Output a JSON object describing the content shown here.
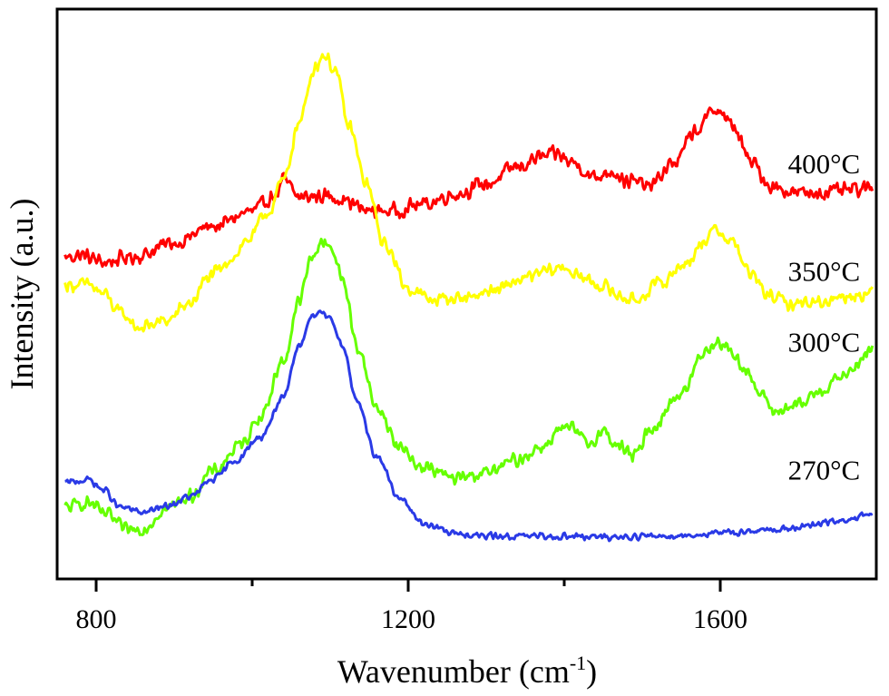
{
  "chart_data": {
    "type": "line",
    "xlabel": "Wavenumber (cm",
    "xlabel_superscript": "-1",
    "xlabel_suffix": ")",
    "ylabel": "Intensity (a.u.)",
    "xlim": [
      750,
      1800
    ],
    "ylim": [
      0,
      100
    ],
    "x_ticks": [
      800,
      1200,
      1600
    ],
    "x_minor_ticks": [
      1000,
      1400
    ],
    "y_ticks_shown": false,
    "grid": false,
    "series": [
      {
        "name": "400°C",
        "color": "#ff0000",
        "noise": 1.6,
        "points": [
          [
            760,
            56.5
          ],
          [
            780,
            56.8
          ],
          [
            810,
            55.6
          ],
          [
            850,
            56.6
          ],
          [
            900,
            59.0
          ],
          [
            950,
            61.9
          ],
          [
            1000,
            64.5
          ],
          [
            1030,
            67.3
          ],
          [
            1040,
            70.0
          ],
          [
            1060,
            67.0
          ],
          [
            1090,
            67.2
          ],
          [
            1110,
            66.9
          ],
          [
            1150,
            64.6
          ],
          [
            1180,
            64.6
          ],
          [
            1220,
            65.8
          ],
          [
            1260,
            67.5
          ],
          [
            1300,
            69.3
          ],
          [
            1340,
            72.3
          ],
          [
            1370,
            74.0
          ],
          [
            1390,
            74.5
          ],
          [
            1410,
            73.1
          ],
          [
            1440,
            70.4
          ],
          [
            1460,
            71.7
          ],
          [
            1480,
            69.9
          ],
          [
            1510,
            69.0
          ],
          [
            1540,
            73.0
          ],
          [
            1570,
            78.8
          ],
          [
            1595,
            82.6
          ],
          [
            1615,
            79.6
          ],
          [
            1640,
            73.1
          ],
          [
            1665,
            68.9
          ],
          [
            1700,
            67.7
          ],
          [
            1740,
            67.9
          ],
          [
            1770,
            68.2
          ],
          [
            1795,
            68.5
          ]
        ]
      },
      {
        "name": "350°C",
        "color": "#ffff00",
        "noise": 1.4,
        "points": [
          [
            760,
            51.6
          ],
          [
            790,
            51.6
          ],
          [
            810,
            50.0
          ],
          [
            830,
            46.7
          ],
          [
            855,
            44.1
          ],
          [
            890,
            45.3
          ],
          [
            920,
            48.4
          ],
          [
            945,
            53.0
          ],
          [
            960,
            54.3
          ],
          [
            975,
            56.6
          ],
          [
            995,
            59.6
          ],
          [
            1020,
            64.3
          ],
          [
            1040,
            69.9
          ],
          [
            1060,
            79.9
          ],
          [
            1080,
            89.8
          ],
          [
            1092,
            92.0
          ],
          [
            1105,
            89.6
          ],
          [
            1125,
            79.2
          ],
          [
            1145,
            69.7
          ],
          [
            1170,
            58.6
          ],
          [
            1200,
            51.0
          ],
          [
            1230,
            49.0
          ],
          [
            1270,
            49.4
          ],
          [
            1310,
            50.6
          ],
          [
            1350,
            52.7
          ],
          [
            1380,
            54.1
          ],
          [
            1400,
            54.7
          ],
          [
            1420,
            52.9
          ],
          [
            1450,
            51.4
          ],
          [
            1470,
            49.7
          ],
          [
            1490,
            48.8
          ],
          [
            1520,
            51.7
          ],
          [
            1560,
            55.8
          ],
          [
            1580,
            59.5
          ],
          [
            1595,
            61.3
          ],
          [
            1615,
            59.2
          ],
          [
            1640,
            53.3
          ],
          [
            1660,
            49.9
          ],
          [
            1690,
            48.3
          ],
          [
            1730,
            48.7
          ],
          [
            1760,
            49.6
          ],
          [
            1795,
            50.3
          ]
        ]
      },
      {
        "name": "300°C",
        "color": "#66ff00",
        "noise": 1.4,
        "points": [
          [
            760,
            12.5
          ],
          [
            790,
            13.4
          ],
          [
            810,
            11.5
          ],
          [
            840,
            8.6
          ],
          [
            860,
            8.8
          ],
          [
            890,
            12.4
          ],
          [
            920,
            14.5
          ],
          [
            950,
            18.9
          ],
          [
            985,
            23.4
          ],
          [
            1010,
            28.5
          ],
          [
            1040,
            38.1
          ],
          [
            1060,
            48.6
          ],
          [
            1075,
            55.8
          ],
          [
            1088,
            59.0
          ],
          [
            1100,
            58.7
          ],
          [
            1115,
            52.9
          ],
          [
            1135,
            40.7
          ],
          [
            1160,
            30.0
          ],
          [
            1190,
            22.9
          ],
          [
            1220,
            19.5
          ],
          [
            1260,
            17.7
          ],
          [
            1300,
            18.6
          ],
          [
            1340,
            20.9
          ],
          [
            1370,
            23.1
          ],
          [
            1395,
            26.1
          ],
          [
            1410,
            26.4
          ],
          [
            1430,
            23.7
          ],
          [
            1450,
            25.8
          ],
          [
            1470,
            23.3
          ],
          [
            1490,
            21.5
          ],
          [
            1510,
            26.4
          ],
          [
            1550,
            32.5
          ],
          [
            1580,
            40.0
          ],
          [
            1595,
            41.7
          ],
          [
            1610,
            40.5
          ],
          [
            1630,
            37.3
          ],
          [
            1650,
            32.6
          ],
          [
            1670,
            29.4
          ],
          [
            1700,
            30.4
          ],
          [
            1730,
            33.3
          ],
          [
            1760,
            35.8
          ],
          [
            1795,
            40.2
          ]
        ]
      },
      {
        "name": "270°C",
        "color": "#2a3ae6",
        "noise": 0.7,
        "points": [
          [
            760,
            16.9
          ],
          [
            790,
            17.4
          ],
          [
            810,
            15.6
          ],
          [
            830,
            12.6
          ],
          [
            860,
            11.7
          ],
          [
            890,
            12.7
          ],
          [
            920,
            14.4
          ],
          [
            950,
            17.5
          ],
          [
            980,
            20.9
          ],
          [
            1010,
            24.9
          ],
          [
            1040,
            31.7
          ],
          [
            1060,
            40.7
          ],
          [
            1075,
            45.9
          ],
          [
            1085,
            47.0
          ],
          [
            1100,
            45.9
          ],
          [
            1115,
            41.2
          ],
          [
            1135,
            30.7
          ],
          [
            1160,
            21.4
          ],
          [
            1190,
            13.9
          ],
          [
            1220,
            9.7
          ],
          [
            1260,
            8.0
          ],
          [
            1300,
            7.5
          ],
          [
            1350,
            7.5
          ],
          [
            1400,
            7.5
          ],
          [
            1450,
            7.3
          ],
          [
            1500,
            7.5
          ],
          [
            1550,
            7.6
          ],
          [
            1600,
            8.0
          ],
          [
            1650,
            8.5
          ],
          [
            1700,
            9.0
          ],
          [
            1750,
            10.1
          ],
          [
            1795,
            11.2
          ]
        ]
      }
    ],
    "series_labels": [
      {
        "text": "400°C",
        "x": 1733,
        "y": 71.2
      },
      {
        "text": "350°C",
        "x": 1733,
        "y": 52.3
      },
      {
        "text": "300°C",
        "x": 1733,
        "y": 39.9
      },
      {
        "text": "270°C",
        "x": 1733,
        "y": 17.4
      }
    ]
  }
}
